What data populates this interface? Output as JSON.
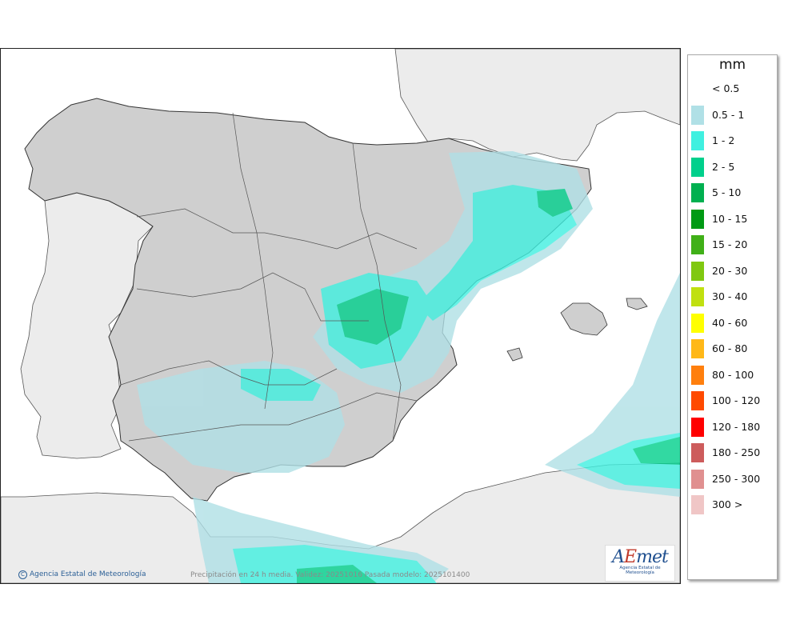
{
  "map": {
    "credit": "Agencia Estatal de Meteorología",
    "footer": "Precipitación en 24 h media. Validez: 20251016 Pasada modelo: 2025101400",
    "logo": {
      "brand_a": "A",
      "brand_e": "E",
      "brand_rest": "met",
      "subtitle": "Agencia Estatal de Meteorología"
    }
  },
  "legend": {
    "title": "mm",
    "items": [
      {
        "label": "< 0.5",
        "color": "#ffffff"
      },
      {
        "label": "0.5 - 1",
        "color": "#b0e0e6"
      },
      {
        "label": "1 - 2",
        "color": "#40f0e0"
      },
      {
        "label": "2 - 5",
        "color": "#00d08c"
      },
      {
        "label": "5 - 10",
        "color": "#00b050"
      },
      {
        "label": "10 - 15",
        "color": "#009a14"
      },
      {
        "label": "15 - 20",
        "color": "#40b018"
      },
      {
        "label": "20 - 30",
        "color": "#80c810"
      },
      {
        "label": "30 - 40",
        "color": "#c0e010"
      },
      {
        "label": "40 - 60",
        "color": "#ffff00"
      },
      {
        "label": "60 - 80",
        "color": "#ffb818"
      },
      {
        "label": "80 - 100",
        "color": "#ff7f0e"
      },
      {
        "label": "100 - 120",
        "color": "#ff4a00"
      },
      {
        "label": "120 - 180",
        "color": "#ff0000"
      },
      {
        "label": "180 - 250",
        "color": "#cd5c5c"
      },
      {
        "label": "250 - 300",
        "color": "#e09090"
      },
      {
        "label": "300 >",
        "color": "#f0c6c6"
      }
    ]
  }
}
